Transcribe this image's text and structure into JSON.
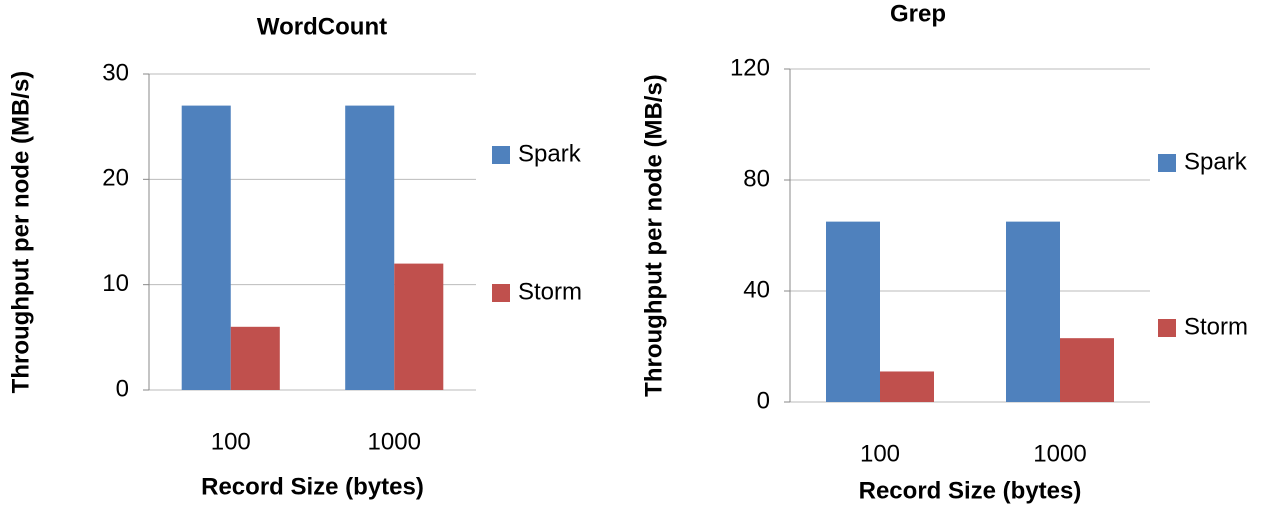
{
  "chart_data": [
    {
      "type": "bar",
      "title": "WordCount",
      "x_label": "Record Size (bytes)",
      "y_label": "Throughput per node (MB/s)",
      "categories": [
        "100",
        "1000"
      ],
      "series": [
        {
          "name": "Spark",
          "color": "#4f81bd",
          "values": [
            27,
            27
          ]
        },
        {
          "name": "Storm",
          "color": "#c0504d",
          "values": [
            6,
            12
          ]
        }
      ],
      "ylim": [
        0,
        30
      ],
      "yticks": [
        0,
        10,
        20,
        30
      ],
      "grid": true,
      "legend": "right"
    },
    {
      "type": "bar",
      "title": "Grep",
      "x_label": "Record Size (bytes)",
      "y_label": "Throughput per node (MB/s)",
      "categories": [
        "100",
        "1000"
      ],
      "series": [
        {
          "name": "Spark",
          "color": "#4f81bd",
          "values": [
            65,
            65
          ]
        },
        {
          "name": "Storm",
          "color": "#c0504d",
          "values": [
            11,
            23
          ]
        }
      ],
      "ylim": [
        0,
        120
      ],
      "yticks": [
        0,
        40,
        80,
        120
      ],
      "grid": true,
      "legend": "right"
    }
  ]
}
